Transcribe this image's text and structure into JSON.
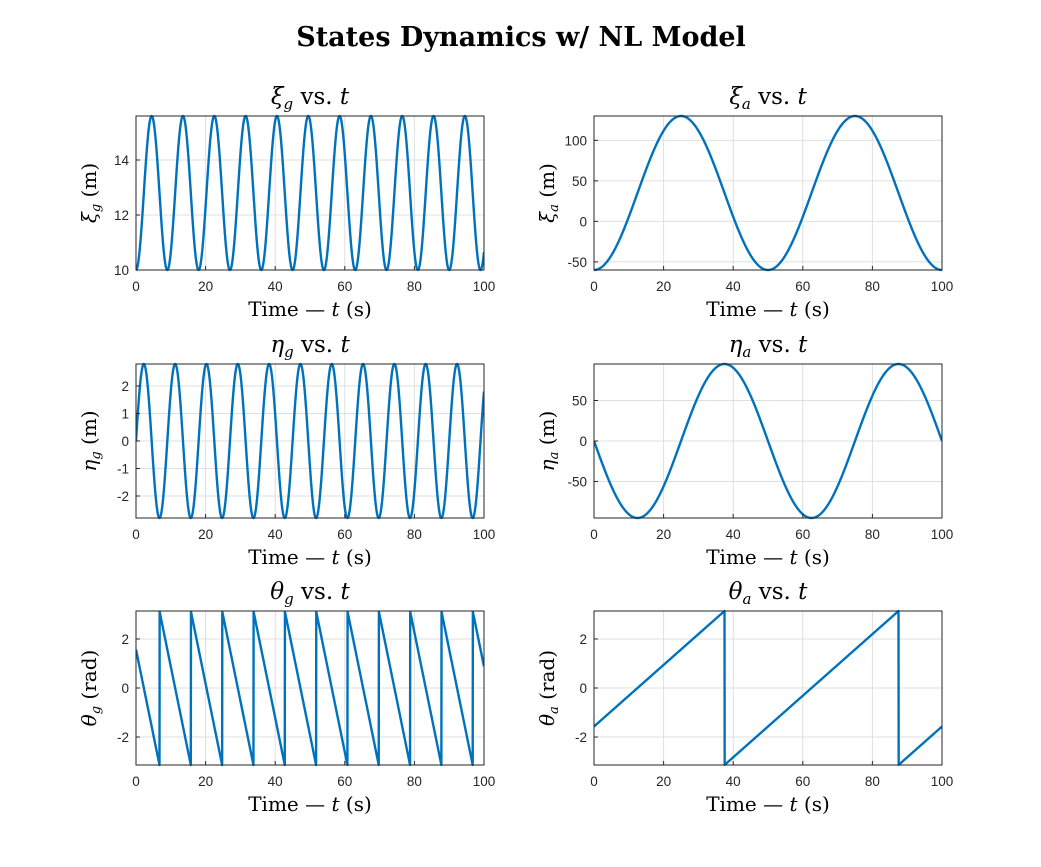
{
  "figure": {
    "suptitle": "States Dynamics w/ NL Model",
    "line_color": "#0072bd",
    "grid": true
  },
  "chart_data": [
    {
      "type": "line",
      "title": "ξ_g vs. t",
      "title_parts": {
        "base": "ξ",
        "sub": "g",
        "rest": " vs. ",
        "var": "t"
      },
      "xlabel": "Time — t (s)",
      "ylabel": "ξ_g (m)",
      "ylabel_parts": {
        "base": "ξ",
        "sub": "g",
        "rest": " (m)"
      },
      "xlim": [
        0,
        100
      ],
      "ylim": [
        10,
        15.6
      ],
      "xticks": [
        0,
        20,
        40,
        60,
        80,
        100
      ],
      "yticks": [
        10,
        12,
        14
      ],
      "ytick_labels": [
        "10",
        "12",
        "14"
      ],
      "series": [
        {
          "function": "cosine",
          "offset": 12.8,
          "amplitude": -2.8,
          "period": 9.0,
          "phase_deg": 0,
          "x_start": 0,
          "x_end": 100
        }
      ]
    },
    {
      "type": "line",
      "title": "ξ_a vs. t",
      "title_parts": {
        "base": "ξ",
        "sub": "a",
        "rest": " vs. ",
        "var": "t"
      },
      "xlabel": "Time — t (s)",
      "ylabel": "ξ_a (m)",
      "ylabel_parts": {
        "base": "ξ",
        "sub": "a",
        "rest": " (m)"
      },
      "xlim": [
        0,
        100
      ],
      "ylim": [
        -60,
        130
      ],
      "xticks": [
        0,
        20,
        40,
        60,
        80,
        100
      ],
      "yticks": [
        -50,
        0,
        50,
        100
      ],
      "ytick_labels": [
        "-50",
        "0",
        "50",
        "100"
      ],
      "series": [
        {
          "function": "cosine",
          "offset": 35,
          "amplitude": -95,
          "period": 50,
          "phase_deg": 0,
          "x_start": 0,
          "x_end": 100
        }
      ]
    },
    {
      "type": "line",
      "title": "η_g vs. t",
      "title_parts": {
        "base": "η",
        "sub": "g",
        "rest": " vs. ",
        "var": "t"
      },
      "xlabel": "Time — t (s)",
      "ylabel": "η_g (m)",
      "ylabel_parts": {
        "base": "η",
        "sub": "g",
        "rest": " (m)"
      },
      "xlim": [
        0,
        100
      ],
      "ylim": [
        -2.8,
        2.8
      ],
      "xticks": [
        0,
        20,
        40,
        60,
        80,
        100
      ],
      "yticks": [
        -2,
        -1,
        0,
        1,
        2
      ],
      "ytick_labels": [
        "-2",
        "-1",
        "0",
        "1",
        "2"
      ],
      "series": [
        {
          "function": "sine",
          "offset": 0,
          "amplitude": 2.8,
          "period": 9.0,
          "phase_deg": 0,
          "x_start": 0,
          "x_end": 100
        }
      ]
    },
    {
      "type": "line",
      "title": "η_a vs. t",
      "title_parts": {
        "base": "η",
        "sub": "a",
        "rest": " vs. ",
        "var": "t"
      },
      "xlabel": "Time — t (s)",
      "ylabel": "η_a (m)",
      "ylabel_parts": {
        "base": "η",
        "sub": "a",
        "rest": " (m)"
      },
      "xlim": [
        0,
        100
      ],
      "ylim": [
        -95,
        95
      ],
      "xticks": [
        0,
        20,
        40,
        60,
        80,
        100
      ],
      "yticks": [
        -50,
        0,
        50
      ],
      "ytick_labels": [
        "-50",
        "0",
        "50"
      ],
      "series": [
        {
          "function": "sine",
          "offset": 0,
          "amplitude": -95,
          "period": 50,
          "phase_deg": 0,
          "x_start": 0,
          "x_end": 100
        }
      ]
    },
    {
      "type": "line",
      "title": "θ_g vs. t",
      "title_parts": {
        "base": "θ",
        "sub": "g",
        "rest": " vs. ",
        "var": "t"
      },
      "xlabel": "Time — t (s)",
      "ylabel": "θ_g (rad)",
      "ylabel_parts": {
        "base": "θ",
        "sub": "g",
        "rest": " (rad)"
      },
      "xlim": [
        0,
        100
      ],
      "ylim": [
        -3.1416,
        3.1416
      ],
      "xticks": [
        0,
        20,
        40,
        60,
        80,
        100
      ],
      "yticks": [
        -2,
        0,
        2
      ],
      "ytick_labels": [
        "-2",
        "0",
        "2"
      ],
      "series": [
        {
          "function": "wrapped_angle",
          "start": 1.5708,
          "slope": -0.6981,
          "x_start": 0,
          "x_end": 100
        }
      ]
    },
    {
      "type": "line",
      "title": "θ_a vs. t",
      "title_parts": {
        "base": "θ",
        "sub": "a",
        "rest": " vs. ",
        "var": "t"
      },
      "xlabel": "Time — t (s)",
      "ylabel": "θ_a (rad)",
      "ylabel_parts": {
        "base": "θ",
        "sub": "a",
        "rest": " (rad)"
      },
      "xlim": [
        0,
        100
      ],
      "ylim": [
        -3.1416,
        3.1416
      ],
      "xticks": [
        0,
        20,
        40,
        60,
        80,
        100
      ],
      "yticks": [
        -2,
        0,
        2
      ],
      "ytick_labels": [
        "-2",
        "0",
        "2"
      ],
      "series": [
        {
          "function": "wrapped_angle",
          "start": -1.5708,
          "slope": 0.12566,
          "x_start": 0,
          "x_end": 100
        }
      ]
    }
  ]
}
